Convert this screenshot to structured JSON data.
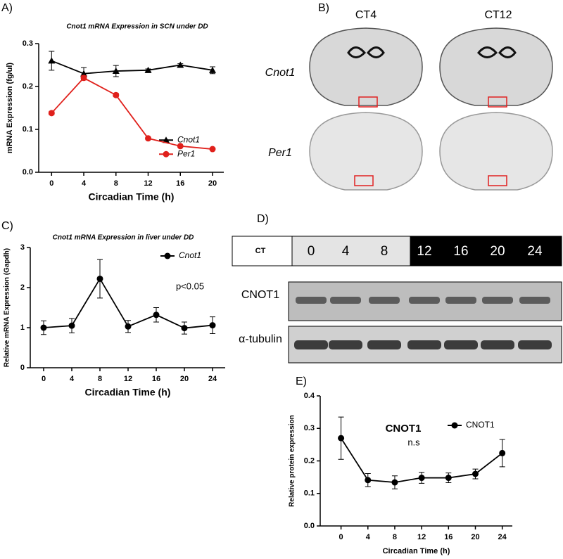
{
  "chart_data": [
    {
      "type": "line",
      "label": "A)",
      "title": "Cnot1 mRNA Expression in SCN under DD",
      "x_label": "Circadian Time (h)",
      "y_label": "mRNA Expression (fg/ul)",
      "x": [
        0,
        4,
        8,
        12,
        16,
        20
      ],
      "xlim": [
        -1.6,
        21.4
      ],
      "xticks": [
        0,
        4,
        8,
        12,
        16,
        20
      ],
      "ylim": [
        0,
        0.3
      ],
      "yticks": [
        {
          "value": 0,
          "label": "0.0"
        },
        0.1,
        0.2,
        0.3
      ],
      "legend": "center right",
      "series": [
        {
          "name": "Cnot1",
          "color": "#000000",
          "marker": "triangle",
          "values": [
            0.26,
            0.23,
            0.236,
            0.238,
            0.25,
            0.238
          ],
          "errors": [
            0.022,
            0.014,
            0.013,
            0.003,
            0.003,
            0.008
          ]
        },
        {
          "name": "Per1",
          "color": "#e0201b",
          "marker": "circle",
          "values": [
            0.138,
            0.22,
            0.18,
            0.079,
            0.061,
            0.054
          ],
          "errors": [
            0.004,
            0.005,
            0.004,
            0.003,
            0.002,
            0.002
          ]
        }
      ]
    },
    {
      "type": "line",
      "label": "C)",
      "title": "Cnot1 mRNA Expression in liver under DD",
      "x_label": "Circadian Time (h)",
      "y_label": "Relative mRNA Expression (Gapdh)",
      "x": [
        0,
        4,
        8,
        12,
        16,
        20,
        24
      ],
      "xlim": [
        -1.9,
        25.8
      ],
      "xticks": [
        0,
        4,
        8,
        12,
        16,
        20,
        24
      ],
      "ylim": [
        0,
        3
      ],
      "yticks": [
        0,
        1,
        2,
        3
      ],
      "legend": "upper right",
      "annotation": "p<0.05",
      "series": [
        {
          "name": "Cnot1",
          "color": "#000000",
          "marker": "circle",
          "values": [
            1.0,
            1.05,
            2.22,
            1.03,
            1.32,
            0.99,
            1.06
          ],
          "errors": [
            0.17,
            0.18,
            0.48,
            0.15,
            0.18,
            0.15,
            0.21
          ]
        }
      ]
    },
    {
      "type": "line",
      "label": "E)",
      "title": "CNOT1",
      "x_label": "Circadian Time (h)",
      "y_label": "Relative protein expression",
      "x": [
        0,
        4,
        8,
        12,
        16,
        20,
        24
      ],
      "xlim": [
        -3.1,
        25.5
      ],
      "xticks": [
        0,
        4,
        8,
        12,
        16,
        20,
        24
      ],
      "ylim": [
        0,
        0.4
      ],
      "yticks": [
        {
          "value": 0,
          "label": "0.0"
        },
        0.1,
        0.2,
        0.3,
        0.4
      ],
      "legend": "upper right",
      "annotation": "n.s",
      "series": [
        {
          "name": "CNOT1",
          "color": "#000000",
          "marker": "circle",
          "values": [
            0.27,
            0.141,
            0.134,
            0.148,
            0.148,
            0.16,
            0.224
          ],
          "errors": [
            0.065,
            0.02,
            0.02,
            0.017,
            0.015,
            0.015,
            0.042
          ]
        }
      ]
    }
  ],
  "in_situ": {
    "label": "B)",
    "columns": [
      "CT4",
      "CT12"
    ],
    "rows": [
      "Cnot1",
      "Per1"
    ]
  },
  "western": {
    "label": "D)",
    "ct_label": "CT",
    "timepoints": [
      "0",
      "4",
      "8",
      "12",
      "16",
      "20",
      "24"
    ],
    "rows": [
      "CNOT1",
      "α-tubulin"
    ]
  }
}
